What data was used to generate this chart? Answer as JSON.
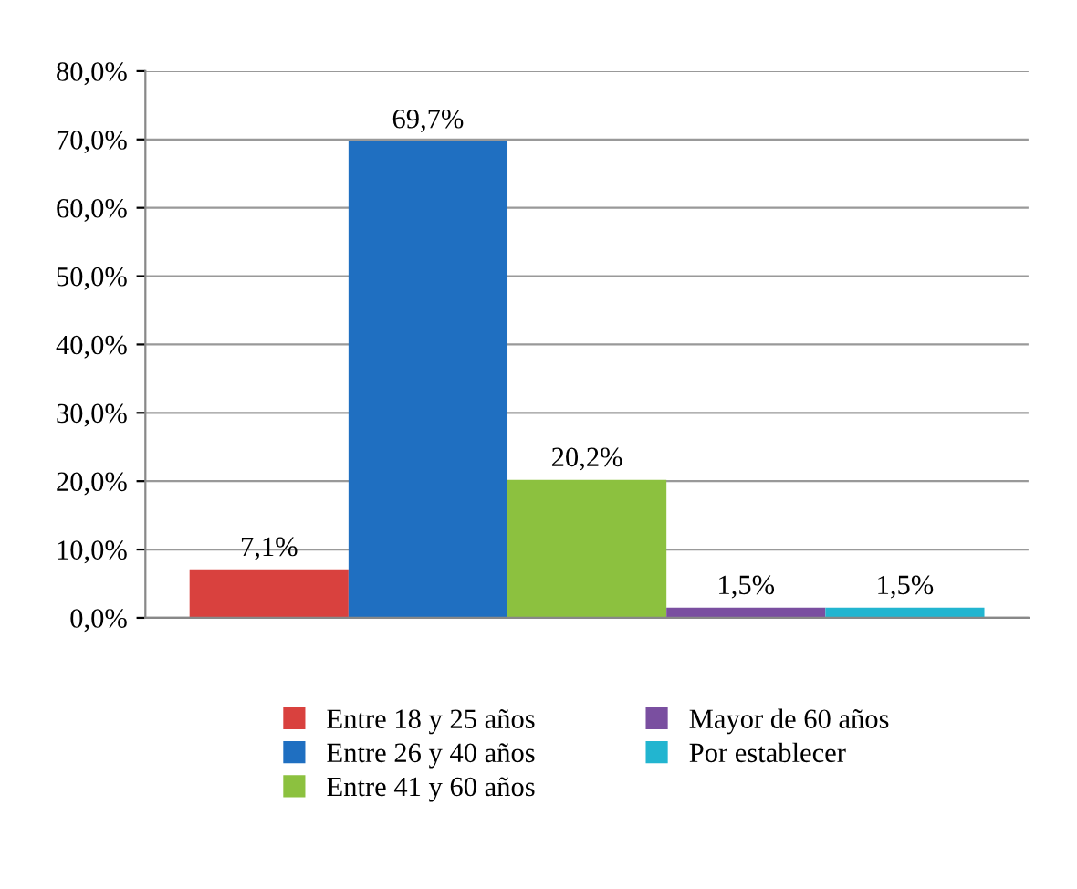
{
  "chart_data": {
    "type": "bar",
    "categories": [
      null
    ],
    "series": [
      {
        "name": "Entre 18 y 25 años",
        "color": "#d9413e",
        "values": [
          7.1
        ],
        "value_labels": [
          "7,1%"
        ]
      },
      {
        "name": "Entre 26 y 40 años",
        "color": "#1f6fc1",
        "values": [
          69.7
        ],
        "value_labels": [
          "69,7%"
        ]
      },
      {
        "name": "Entre 41 y 60 años",
        "color": "#8cc13f",
        "values": [
          20.2
        ],
        "value_labels": [
          "20,2%"
        ]
      },
      {
        "name": "Mayor de 60 años",
        "color": "#7a4fa0",
        "values": [
          1.5
        ],
        "value_labels": [
          "1,5%"
        ]
      },
      {
        "name": "Por establecer",
        "color": "#22b5d0",
        "values": [
          1.5
        ],
        "value_labels": [
          "1,5%"
        ]
      }
    ],
    "ylim": [
      0,
      80
    ],
    "yticks": [
      {
        "value": 0,
        "label": "0,0%"
      },
      {
        "value": 10,
        "label": "10,0%"
      },
      {
        "value": 20,
        "label": "20,0%"
      },
      {
        "value": 30,
        "label": "30,0%"
      },
      {
        "value": 40,
        "label": "40,0%"
      },
      {
        "value": 50,
        "label": "50,0%"
      },
      {
        "value": 60,
        "label": "60,0%"
      },
      {
        "value": 70,
        "label": "70,0%"
      },
      {
        "value": 80,
        "label": "80,0%"
      }
    ],
    "grid": "y",
    "legend": "bottom"
  }
}
